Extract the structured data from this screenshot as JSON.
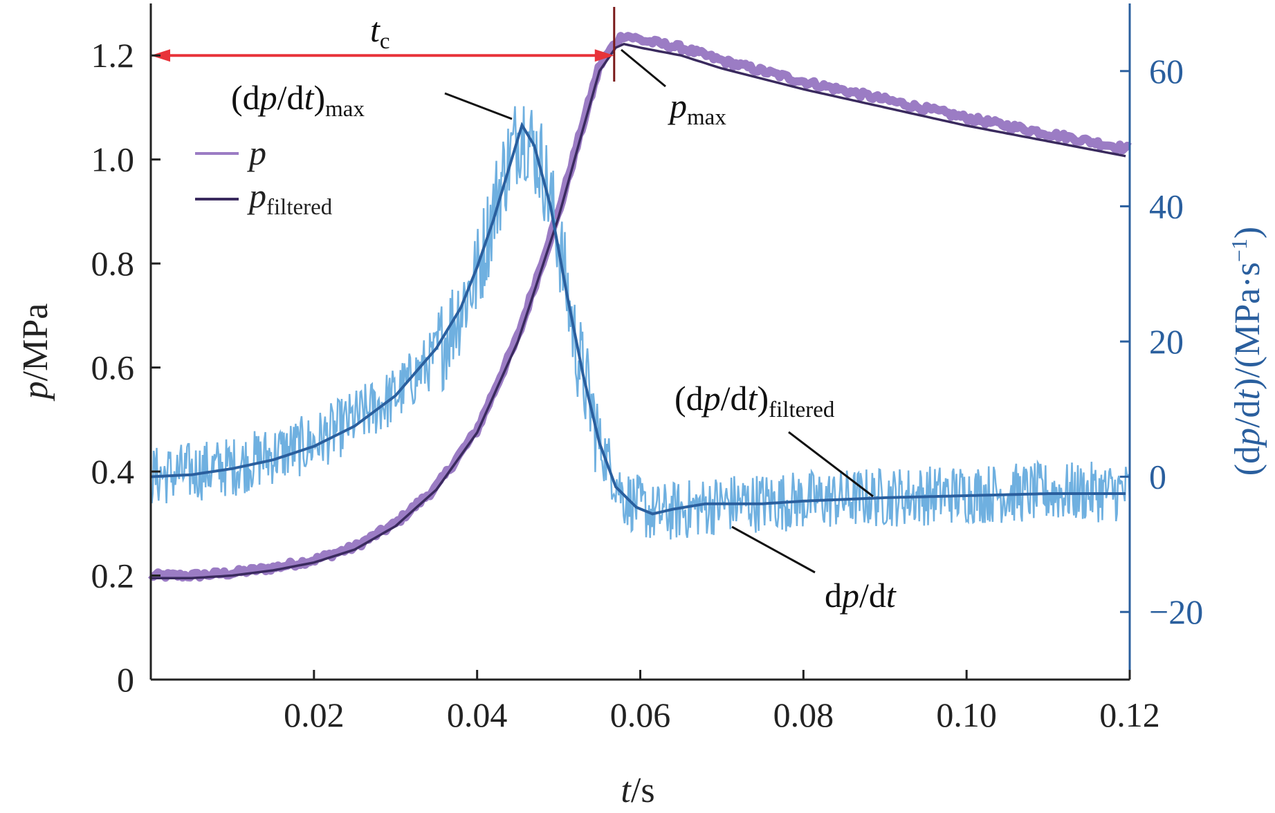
{
  "chart_data": {
    "type": "line",
    "title": "",
    "x": {
      "label_var": "t",
      "label_unit": "/s",
      "range": [
        0,
        0.12
      ],
      "ticks": [
        0.02,
        0.04,
        0.06,
        0.08,
        0.1,
        0.12
      ],
      "tick_labels": [
        "0.02",
        "0.04",
        "0.06",
        "0.08",
        "0.10",
        "0.12"
      ]
    },
    "y_left": {
      "label_var": "p",
      "label_unit": "/MPa",
      "range": [
        0,
        1.3
      ],
      "ticks": [
        0,
        0.2,
        0.4,
        0.6,
        0.8,
        1.0,
        1.2
      ],
      "tick_labels": [
        "0",
        "0.2",
        "0.4",
        "0.6",
        "0.8",
        "1.0",
        "1.2"
      ]
    },
    "y_right": {
      "label_pre": "(d",
      "label_var": "p",
      "label_mid": "/d",
      "label_var2": "t",
      "label_post": ")/(MPa·s",
      "label_sup": "−1",
      "label_end": ")",
      "range": [
        -30,
        70
      ],
      "ticks": [
        -20,
        0,
        20,
        40,
        60
      ],
      "tick_labels": [
        "−20",
        "0",
        "20",
        "40",
        "60"
      ]
    },
    "series": [
      {
        "name": "p",
        "axis": "left",
        "color": "#9b7cc4",
        "points": [
          [
            0,
            0.2
          ],
          [
            0.005,
            0.2
          ],
          [
            0.01,
            0.205
          ],
          [
            0.015,
            0.215
          ],
          [
            0.02,
            0.23
          ],
          [
            0.025,
            0.255
          ],
          [
            0.03,
            0.3
          ],
          [
            0.035,
            0.37
          ],
          [
            0.04,
            0.48
          ],
          [
            0.045,
            0.66
          ],
          [
            0.05,
            0.9
          ],
          [
            0.053,
            1.07
          ],
          [
            0.055,
            1.18
          ],
          [
            0.057,
            1.225
          ],
          [
            0.058,
            1.24
          ],
          [
            0.06,
            1.23
          ],
          [
            0.065,
            1.215
          ],
          [
            0.07,
            1.19
          ],
          [
            0.08,
            1.15
          ],
          [
            0.09,
            1.115
          ],
          [
            0.1,
            1.08
          ],
          [
            0.11,
            1.05
          ],
          [
            0.12,
            1.02
          ]
        ]
      },
      {
        "name": "p_filtered",
        "axis": "left",
        "color": "#3a2a5e",
        "points": [
          [
            0,
            0.195
          ],
          [
            0.005,
            0.195
          ],
          [
            0.01,
            0.2
          ],
          [
            0.015,
            0.21
          ],
          [
            0.02,
            0.225
          ],
          [
            0.025,
            0.25
          ],
          [
            0.03,
            0.295
          ],
          [
            0.035,
            0.365
          ],
          [
            0.04,
            0.475
          ],
          [
            0.045,
            0.65
          ],
          [
            0.05,
            0.89
          ],
          [
            0.053,
            1.06
          ],
          [
            0.055,
            1.17
          ],
          [
            0.057,
            1.215
          ],
          [
            0.058,
            1.222
          ],
          [
            0.06,
            1.215
          ],
          [
            0.065,
            1.2
          ],
          [
            0.07,
            1.175
          ],
          [
            0.08,
            1.135
          ],
          [
            0.09,
            1.1
          ],
          [
            0.1,
            1.065
          ],
          [
            0.11,
            1.035
          ],
          [
            0.12,
            1.005
          ]
        ]
      },
      {
        "name": "dp/dt",
        "axis": "right",
        "color": "#6fb0e0",
        "smooth": [
          [
            0,
            0
          ],
          [
            0.01,
            1.5
          ],
          [
            0.02,
            5
          ],
          [
            0.03,
            12
          ],
          [
            0.035,
            18
          ],
          [
            0.04,
            30
          ],
          [
            0.043,
            44
          ],
          [
            0.0455,
            52
          ],
          [
            0.048,
            46
          ],
          [
            0.05,
            35
          ],
          [
            0.052,
            20
          ],
          [
            0.055,
            5
          ],
          [
            0.058,
            -3
          ],
          [
            0.0615,
            -5.5
          ],
          [
            0.065,
            -5
          ],
          [
            0.07,
            -4
          ],
          [
            0.08,
            -3.5
          ],
          [
            0.09,
            -3
          ],
          [
            0.1,
            -2.5
          ],
          [
            0.12,
            -2.2
          ]
        ],
        "noise_amplitude": 4.5
      },
      {
        "name": "(dp/dt)_filtered",
        "axis": "right",
        "color": "#2a5f9e",
        "points": [
          [
            0,
            0
          ],
          [
            0.005,
            0.3
          ],
          [
            0.01,
            1.2
          ],
          [
            0.015,
            2.5
          ],
          [
            0.02,
            4.5
          ],
          [
            0.025,
            7.5
          ],
          [
            0.03,
            12
          ],
          [
            0.035,
            19
          ],
          [
            0.038,
            25
          ],
          [
            0.04,
            31
          ],
          [
            0.042,
            38
          ],
          [
            0.044,
            46
          ],
          [
            0.0455,
            52
          ],
          [
            0.047,
            49
          ],
          [
            0.049,
            40
          ],
          [
            0.051,
            27
          ],
          [
            0.053,
            15
          ],
          [
            0.055,
            5
          ],
          [
            0.057,
            -1.5
          ],
          [
            0.0595,
            -4.5
          ],
          [
            0.0615,
            -5.5
          ],
          [
            0.064,
            -4.8
          ],
          [
            0.068,
            -4
          ],
          [
            0.075,
            -4
          ],
          [
            0.08,
            -3.6
          ],
          [
            0.09,
            -3.1
          ],
          [
            0.1,
            -2.8
          ],
          [
            0.11,
            -2.5
          ],
          [
            0.12,
            -2.5
          ]
        ]
      }
    ],
    "tc_value": 0.0568,
    "tc_y": 1.2,
    "annotations": {
      "tc": {
        "main": "t",
        "sub": "c"
      },
      "dpdt_max": {
        "pre": "(d",
        "var": "p",
        "mid": "/d",
        "var2": "t",
        "post": ")",
        "sub": "max"
      },
      "p_max": {
        "main": "p",
        "sub": "max"
      },
      "dpdt_filtered": {
        "pre": "(d",
        "var": "p",
        "mid": "/d",
        "var2": "t",
        "post": ")",
        "sub": "filtered"
      },
      "dpdt": {
        "pre": "d",
        "var": "p",
        "mid": "/d",
        "var2": "t"
      }
    },
    "legend": [
      {
        "label": "p",
        "sub": "",
        "color": "#9b7cc4"
      },
      {
        "label": "p",
        "sub": "filtered",
        "color": "#3a2a5e"
      }
    ],
    "colors": {
      "axis_left": "#222222",
      "axis_right": "#2a5f9e",
      "arrow": "#e8333a",
      "marker_line": "#7a1a1a"
    }
  }
}
